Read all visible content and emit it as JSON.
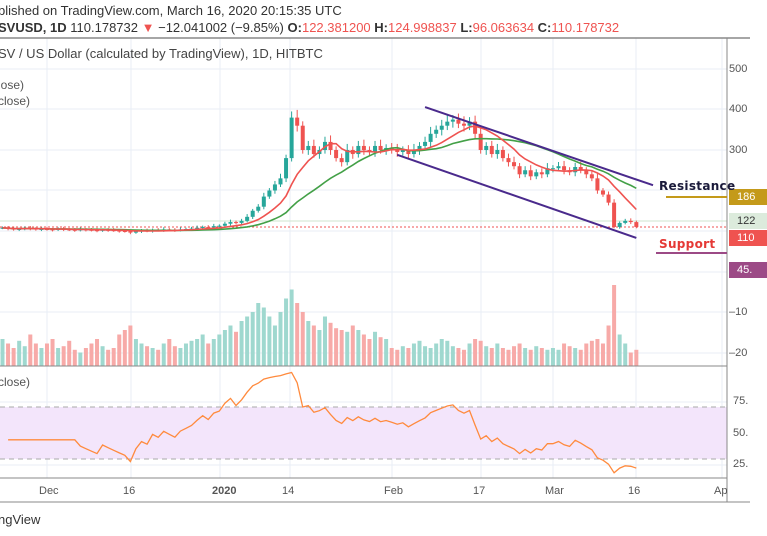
{
  "header": {
    "published": "blished on TradingView.com, March 16, 2020 20:15:35 UTC",
    "symbol": "SVUSD, 1D",
    "last": "110.178732",
    "change": "−12.041002 (−9.85%)",
    "o_label": "O:",
    "o": "122.381200",
    "h_label": "H:",
    "h": "124.998837",
    "l_label": "L:",
    "l": "96.063634",
    "c_label": "C:",
    "c": "110.178732",
    "chart_title": "SV / US Dollar (calculated by TradingView), 1D, HITBTC",
    "legend1": "lose)",
    "legend2": "close)",
    "rsi_legend": "close)"
  },
  "price_axis": {
    "ticks": [
      "500",
      "400",
      "300"
    ],
    "labels": {
      "resistance": "186",
      "open": "122",
      "last": "110",
      "support": "45."
    }
  },
  "volume_axis": [
    "–10",
    "–20"
  ],
  "rsi_axis": [
    "75.",
    "50.",
    "25."
  ],
  "time_axis": [
    "Dec",
    "16",
    "2020",
    "14",
    "Feb",
    "17",
    "Mar",
    "16",
    "Ap"
  ],
  "annotations": {
    "resistance": "Resistance",
    "support": "Support"
  },
  "footer": "ngView",
  "colors": {
    "up": "#26a69a",
    "down": "#ef5350",
    "ma_fast": "#ef5350",
    "ma_slow": "#43a047",
    "trend": "#4a2a8c",
    "rsi": "#ff8a3d",
    "resistance": "#c49a1a",
    "support": "#9c4a86"
  },
  "chart_data": {
    "type": "candlestick",
    "start_date": "2019-11-23",
    "interval": "1D",
    "closes": [
      108,
      106,
      104,
      105,
      107,
      106,
      104,
      105,
      104,
      103,
      105,
      104,
      103,
      102,
      104,
      103,
      102,
      101,
      103,
      102,
      101,
      100,
      99,
      96,
      99,
      101,
      100,
      103,
      102,
      104,
      103,
      102,
      104,
      105,
      106,
      108,
      110,
      109,
      112,
      113,
      118,
      122,
      120,
      125,
      135,
      150,
      160,
      185,
      200,
      215,
      230,
      280,
      380,
      360,
      300,
      310,
      290,
      300,
      320,
      300,
      280,
      270,
      300,
      290,
      310,
      300,
      295,
      310,
      300,
      305,
      300,
      295,
      300,
      290,
      300,
      310,
      320,
      340,
      350,
      360,
      370,
      375,
      365,
      360,
      370,
      340,
      300,
      310,
      290,
      300,
      280,
      270,
      260,
      240,
      250,
      235,
      245,
      240,
      255,
      255,
      260,
      250,
      245,
      258,
      250,
      240,
      230,
      200,
      190,
      170,
      110,
      120,
      125,
      122,
      110
    ],
    "volume": [
      30,
      25,
      20,
      28,
      22,
      35,
      25,
      20,
      25,
      30,
      20,
      22,
      28,
      18,
      15,
      20,
      25,
      30,
      22,
      18,
      20,
      35,
      40,
      45,
      30,
      25,
      22,
      20,
      18,
      25,
      30,
      22,
      20,
      25,
      28,
      30,
      35,
      25,
      30,
      35,
      40,
      45,
      38,
      50,
      55,
      60,
      70,
      65,
      55,
      45,
      60,
      75,
      85,
      70,
      60,
      50,
      45,
      40,
      55,
      48,
      42,
      40,
      38,
      45,
      40,
      35,
      30,
      38,
      32,
      30,
      20,
      18,
      22,
      20,
      25,
      28,
      22,
      20,
      25,
      30,
      28,
      22,
      20,
      18,
      25,
      30,
      28,
      22,
      20,
      25,
      20,
      18,
      22,
      25,
      20,
      18,
      22,
      20,
      18,
      20,
      18,
      25,
      22,
      20,
      18,
      25,
      28,
      30,
      25,
      45,
      90,
      35,
      25,
      15,
      18
    ],
    "price_range": [
      0,
      540
    ],
    "trendlines": [
      {
        "name": "upper",
        "from": {
          "day": 76,
          "price": 406
        },
        "to": {
          "day": 117,
          "price": 213
        }
      },
      {
        "name": "lower",
        "from": {
          "day": 71,
          "price": 288
        },
        "to": {
          "day": 114,
          "price": 83
        }
      }
    ],
    "levels": {
      "resistance": 186,
      "support": 45
    },
    "rsi": {
      "period": 14,
      "upper": 70,
      "lower": 30
    }
  }
}
